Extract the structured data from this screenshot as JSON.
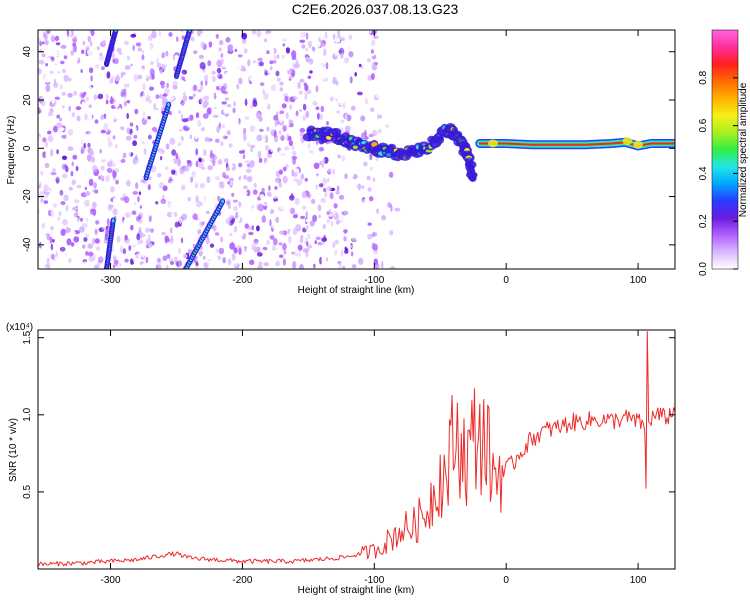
{
  "title": "C2E6.2026.037.08.13.G23",
  "colors": {
    "snr_line": "#ee2b2b",
    "spectrogram_noise": "#6a1be0",
    "colorbar_stops": [
      "#ffffff",
      "#d9b8ff",
      "#b060ff",
      "#6a1be0",
      "#2a3cff",
      "#00a6ff",
      "#22e6e6",
      "#33ee44",
      "#a8f020",
      "#f6f017",
      "#ffb000",
      "#ff6a00",
      "#ff1f1f",
      "#ff2f9a",
      "#ff66dd"
    ]
  },
  "chart_data": [
    {
      "type": "heatmap",
      "xlabel": "Height of straight line (km)",
      "ylabel": "Frequency (Hz)",
      "xlim": [
        -355,
        128
      ],
      "ylim": [
        -50,
        49
      ],
      "xticks": [
        -300,
        -200,
        -100,
        0,
        100
      ],
      "yticks": [
        -40,
        -20,
        0,
        20,
        40
      ],
      "grid": false,
      "colorbar": {
        "label": "Normalized spectral amplitude",
        "range": [
          0,
          1
        ],
        "ticks": [
          "0.0",
          "0.2",
          "0.4",
          "0.6",
          "0.8"
        ]
      },
      "features": {
        "carrier_line": {
          "description_values": "high-amplitude tone near 2 Hz from about -20 km to 128 km",
          "points": [
            [
              -20,
              2
            ],
            [
              0,
              2
            ],
            [
              20,
              1.5
            ],
            [
              40,
              1.5
            ],
            [
              60,
              1.5
            ],
            [
              80,
              2
            ],
            [
              90,
              2.5
            ],
            [
              100,
              1
            ],
            [
              110,
              2
            ],
            [
              128,
              2
            ]
          ],
          "amplitude": 0.9
        },
        "turbulent_band": {
          "points": [
            [
              -150,
              6
            ],
            [
              -130,
              5
            ],
            [
              -120,
              3
            ],
            [
              -100,
              0
            ],
            [
              -80,
              -2
            ],
            [
              -60,
              0
            ],
            [
              -45,
              8
            ],
            [
              -35,
              4
            ],
            [
              -30,
              -2
            ],
            [
              -25,
              -12
            ]
          ],
          "amplitude": 0.35
        },
        "streaks": [
          {
            "x": [
              -303,
              -298
            ],
            "y": [
              -50,
              -30
            ],
            "amplitude": 0.4
          },
          {
            "x": [
              -303,
              -296
            ],
            "y": [
              35,
              49
            ],
            "amplitude": 0.4
          },
          {
            "x": [
              -273,
              -256
            ],
            "y": [
              -12,
              18
            ],
            "amplitude": 0.4
          },
          {
            "x": [
              -250,
              -240
            ],
            "y": [
              30,
              49
            ],
            "amplitude": 0.4
          },
          {
            "x": [
              -243,
              -215
            ],
            "y": [
              -50,
              -22
            ],
            "amplitude": 0.4
          }
        ]
      }
    },
    {
      "type": "line",
      "xlabel": "Height of straight line (km)",
      "ylabel": "SNR (10 * v/v)",
      "scale_label": "(x10⁴)",
      "xlim": [
        -355,
        128
      ],
      "ylim": [
        0,
        15500
      ],
      "xticks": [
        -300,
        -200,
        -100,
        0,
        100
      ],
      "yticks": [
        "0.5",
        "1.0",
        "1.5"
      ],
      "ytick_values": [
        5000,
        10000,
        15000
      ],
      "grid": false,
      "series": [
        {
          "x": [
            -355,
            -320,
            -300,
            -280,
            -260,
            -250,
            -240,
            -200,
            -160,
            -130,
            -120,
            -100,
            -90,
            -80,
            -70,
            -60,
            -55,
            -50,
            -45,
            -40,
            -35,
            -30,
            -25,
            -20,
            -15,
            -12,
            -10,
            -5,
            0,
            5,
            10,
            20,
            30,
            40,
            50,
            60,
            70,
            80,
            90,
            95,
            100,
            105,
            106,
            107,
            108,
            110,
            115,
            120,
            128
          ],
          "y": [
            300,
            400,
            500,
            600,
            900,
            1000,
            700,
            500,
            500,
            700,
            800,
            1200,
            1800,
            2500,
            2800,
            3800,
            5000,
            6000,
            6000,
            8500,
            8300,
            7000,
            8500,
            8800,
            8000,
            7000,
            6000,
            6500,
            6500,
            6800,
            7500,
            8500,
            9000,
            9200,
            9500,
            9600,
            9700,
            9600,
            9800,
            9700,
            9500,
            9400,
            5000,
            15300,
            9600,
            9800,
            10000,
            9800,
            10200
          ]
        }
      ]
    }
  ]
}
